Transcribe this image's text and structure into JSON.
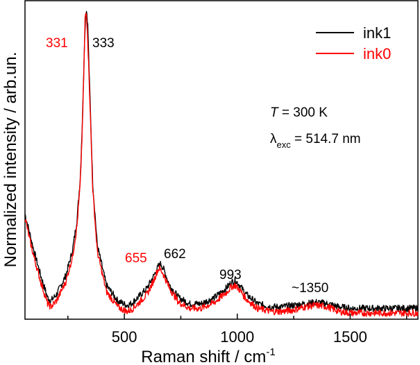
{
  "chart_data": {
    "type": "line",
    "title": "",
    "xlabel": "Raman shift / cm",
    "xlabel_superscript": "-1",
    "ylabel": "Normalized intensity / arb.un.",
    "xlim": [
      60,
      1800
    ],
    "ylim": [
      0,
      1.03
    ],
    "x_ticks": [
      500,
      1000,
      1500
    ],
    "x_tick_labels": [
      "500",
      "1000",
      "1500"
    ],
    "y_ticks_labeled": false,
    "series": [
      {
        "name": "ink1",
        "color": "#000000",
        "x": [
          60,
          80,
          100,
          130,
          160,
          175,
          200,
          240,
          270,
          290,
          305,
          315,
          322,
          328,
          333,
          338,
          345,
          360,
          380,
          420,
          470,
          510,
          530,
          560,
          600,
          630,
          650,
          662,
          675,
          700,
          740,
          790,
          840,
          900,
          950,
          975,
          993,
          1010,
          1040,
          1090,
          1150,
          1200,
          1250,
          1300,
          1350,
          1400,
          1450,
          1500,
          1560,
          1620,
          1680,
          1740,
          1800
        ],
        "y": [
          0.34,
          0.28,
          0.22,
          0.14,
          0.07,
          0.06,
          0.08,
          0.14,
          0.22,
          0.32,
          0.46,
          0.66,
          0.86,
          0.98,
          1.0,
          0.95,
          0.78,
          0.44,
          0.24,
          0.11,
          0.06,
          0.045,
          0.05,
          0.07,
          0.1,
          0.14,
          0.17,
          0.18,
          0.16,
          0.11,
          0.07,
          0.05,
          0.05,
          0.07,
          0.1,
          0.12,
          0.125,
          0.11,
          0.08,
          0.05,
          0.04,
          0.04,
          0.045,
          0.05,
          0.055,
          0.05,
          0.04,
          0.035,
          0.035,
          0.035,
          0.035,
          0.035,
          0.035
        ]
      },
      {
        "name": "ink0",
        "color": "#ff0000",
        "x": [
          60,
          80,
          100,
          130,
          160,
          175,
          200,
          240,
          270,
          290,
          305,
          315,
          322,
          326,
          331,
          336,
          345,
          360,
          380,
          420,
          470,
          510,
          530,
          560,
          600,
          630,
          645,
          655,
          670,
          700,
          740,
          790,
          840,
          900,
          950,
          975,
          990,
          1010,
          1040,
          1090,
          1150,
          1200,
          1250,
          1300,
          1350,
          1400,
          1450,
          1500,
          1560,
          1620,
          1680,
          1740,
          1800
        ],
        "y": [
          0.33,
          0.26,
          0.2,
          0.12,
          0.05,
          0.04,
          0.06,
          0.12,
          0.2,
          0.3,
          0.44,
          0.64,
          0.84,
          0.97,
          0.995,
          0.94,
          0.76,
          0.42,
          0.22,
          0.09,
          0.04,
          0.025,
          0.03,
          0.05,
          0.08,
          0.125,
          0.155,
          0.165,
          0.15,
          0.1,
          0.055,
          0.035,
          0.035,
          0.055,
          0.085,
          0.105,
          0.11,
          0.095,
          0.065,
          0.035,
          0.025,
          0.025,
          0.03,
          0.04,
          0.045,
          0.04,
          0.025,
          0.02,
          0.02,
          0.02,
          0.02,
          0.02,
          0.02
        ]
      }
    ],
    "annotations": [
      {
        "text": "331",
        "x": 331,
        "color": "#ff0000"
      },
      {
        "text": "333",
        "x": 333,
        "color": "#000000"
      },
      {
        "text": "655",
        "x": 655,
        "color": "#ff0000"
      },
      {
        "text": "662",
        "x": 662,
        "color": "#000000"
      },
      {
        "text": "993",
        "x": 993,
        "color": "#000000"
      },
      {
        "text": "~1350",
        "x": 1350,
        "color": "#000000"
      }
    ],
    "conditions": {
      "temperature_symbol": "T",
      "temperature_value": " = 300 K",
      "wavelength_symbol": "λ",
      "wavelength_subscript": "exc",
      "wavelength_value": " = 514.7 nm"
    },
    "legend": {
      "placement": "top-right",
      "entries": [
        {
          "label": "ink1",
          "color": "#000000"
        },
        {
          "label": "ink0",
          "color": "#ff0000"
        }
      ]
    }
  }
}
